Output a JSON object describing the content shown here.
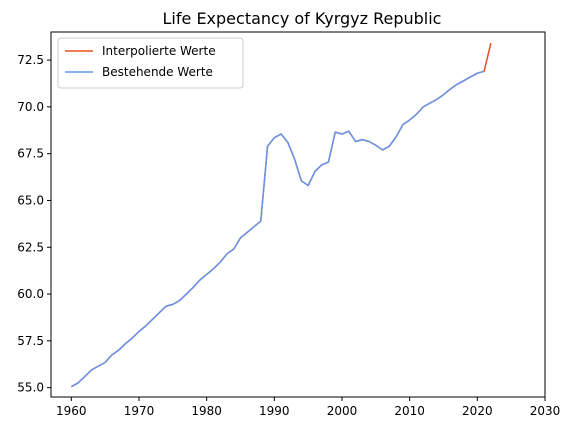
{
  "chart_data": {
    "type": "line",
    "title": "Life Expectancy of Kyrgyz Republic",
    "xlabel": "",
    "ylabel": "",
    "xlim": [
      1957,
      2030
    ],
    "ylim": [
      54.5,
      74.0
    ],
    "x_ticks": [
      1960,
      1970,
      1980,
      1990,
      2000,
      2010,
      2020,
      2030
    ],
    "y_ticks": [
      55.0,
      57.5,
      60.0,
      62.5,
      65.0,
      67.5,
      70.0,
      72.5
    ],
    "grid": false,
    "legend_position": "top-left",
    "series": [
      {
        "name": "Interpolierte Werte",
        "color": "#e8501e",
        "x": [
          1960,
          1961,
          1962,
          1963,
          1964,
          1965,
          1966,
          1967,
          1968,
          1969,
          1970,
          1971,
          1972,
          1973,
          1974,
          1975,
          1976,
          1977,
          1978,
          1979,
          1980,
          1981,
          1982,
          1983,
          1984,
          1985,
          1986,
          1987,
          1988,
          1989,
          1990,
          1991,
          1992,
          1993,
          1994,
          1995,
          1996,
          1997,
          1998,
          1999,
          2000,
          2001,
          2002,
          2003,
          2004,
          2005,
          2006,
          2007,
          2008,
          2009,
          2010,
          2011,
          2012,
          2013,
          2014,
          2015,
          2016,
          2017,
          2018,
          2019,
          2020,
          2021,
          2022
        ],
        "values": [
          55.05,
          55.25,
          55.6,
          55.95,
          56.15,
          56.35,
          56.75,
          57.0,
          57.35,
          57.65,
          58.0,
          58.3,
          58.65,
          59.0,
          59.35,
          59.45,
          59.65,
          60.0,
          60.35,
          60.75,
          61.05,
          61.35,
          61.7,
          62.15,
          62.4,
          63.0,
          63.3,
          63.6,
          63.9,
          67.9,
          68.35,
          68.55,
          68.1,
          67.2,
          66.05,
          65.8,
          66.55,
          66.9,
          67.05,
          68.65,
          68.55,
          68.7,
          68.15,
          68.25,
          68.15,
          67.95,
          67.7,
          67.9,
          68.4,
          69.05,
          69.3,
          69.6,
          70.0,
          70.2,
          70.4,
          70.65,
          70.95,
          71.2,
          71.4,
          71.6,
          71.8,
          71.9,
          73.4
        ]
      },
      {
        "name": "Bestehende Werte",
        "color": "#6495ed",
        "x": [
          1960,
          1961,
          1962,
          1963,
          1964,
          1965,
          1966,
          1967,
          1968,
          1969,
          1970,
          1971,
          1972,
          1973,
          1974,
          1975,
          1976,
          1977,
          1978,
          1979,
          1980,
          1981,
          1982,
          1983,
          1984,
          1985,
          1986,
          1987,
          1988,
          1989,
          1990,
          1991,
          1992,
          1993,
          1994,
          1995,
          1996,
          1997,
          1998,
          1999,
          2000,
          2001,
          2002,
          2003,
          2004,
          2005,
          2006,
          2007,
          2008,
          2009,
          2010,
          2011,
          2012,
          2013,
          2014,
          2015,
          2016,
          2017,
          2018,
          2019,
          2020,
          2021
        ],
        "values": [
          55.05,
          55.25,
          55.6,
          55.95,
          56.15,
          56.35,
          56.75,
          57.0,
          57.35,
          57.65,
          58.0,
          58.3,
          58.65,
          59.0,
          59.35,
          59.45,
          59.65,
          60.0,
          60.35,
          60.75,
          61.05,
          61.35,
          61.7,
          62.15,
          62.4,
          63.0,
          63.3,
          63.6,
          63.9,
          67.9,
          68.35,
          68.55,
          68.1,
          67.2,
          66.05,
          65.8,
          66.55,
          66.9,
          67.05,
          68.65,
          68.55,
          68.7,
          68.15,
          68.25,
          68.15,
          67.95,
          67.7,
          67.9,
          68.4,
          69.05,
          69.3,
          69.6,
          70.0,
          70.2,
          70.4,
          70.65,
          70.95,
          71.2,
          71.4,
          71.6,
          71.8,
          71.9
        ]
      }
    ]
  }
}
